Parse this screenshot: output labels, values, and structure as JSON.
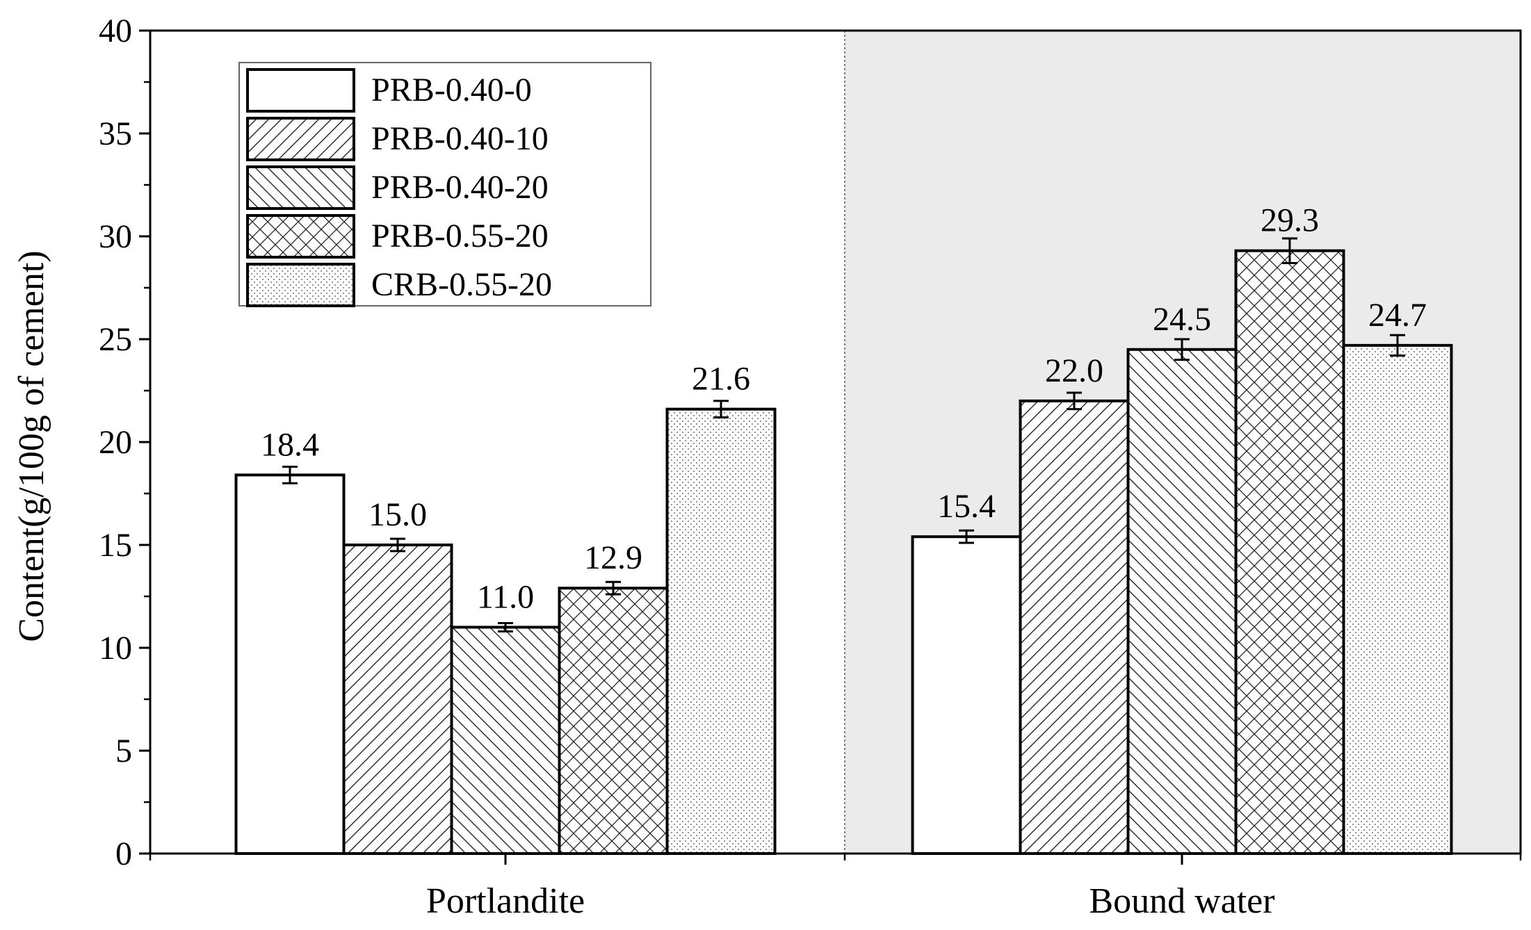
{
  "chart_data": {
    "type": "bar",
    "title": "",
    "xlabel": "",
    "ylabel": "Content(g/100g of cement)",
    "ylim": [
      0,
      40
    ],
    "yticks": [
      0,
      5,
      10,
      15,
      20,
      25,
      30,
      35,
      40
    ],
    "categories": [
      "Portlandite",
      "Bound water"
    ],
    "legend_position": "top-left",
    "shaded_region": "Bound water",
    "series": [
      {
        "name": "PRB-0.40-0",
        "pattern": "none",
        "values": [
          18.4,
          15.4
        ],
        "errors": [
          0.4,
          0.3
        ],
        "labels": [
          "18.4",
          "15.4"
        ]
      },
      {
        "name": "PRB-0.40-10",
        "pattern": "hatch-up",
        "values": [
          15.0,
          22.0
        ],
        "errors": [
          0.3,
          0.4
        ],
        "labels": [
          "15.0",
          "22.0"
        ]
      },
      {
        "name": "PRB-0.40-20",
        "pattern": "hatch-down",
        "values": [
          11.0,
          24.5
        ],
        "errors": [
          0.2,
          0.5
        ],
        "labels": [
          "11.0",
          "24.5"
        ]
      },
      {
        "name": "PRB-0.55-20",
        "pattern": "crosshatch",
        "values": [
          12.9,
          29.3
        ],
        "errors": [
          0.3,
          0.6
        ],
        "labels": [
          "12.9",
          "29.3"
        ]
      },
      {
        "name": "CRB-0.55-20",
        "pattern": "dots",
        "values": [
          21.6,
          24.7
        ],
        "errors": [
          0.4,
          0.5
        ],
        "labels": [
          "21.6",
          "24.7"
        ]
      }
    ],
    "colors": {
      "bar_fill": "#ffffff",
      "stroke": "#000000",
      "shade": "#ebebeb"
    }
  }
}
